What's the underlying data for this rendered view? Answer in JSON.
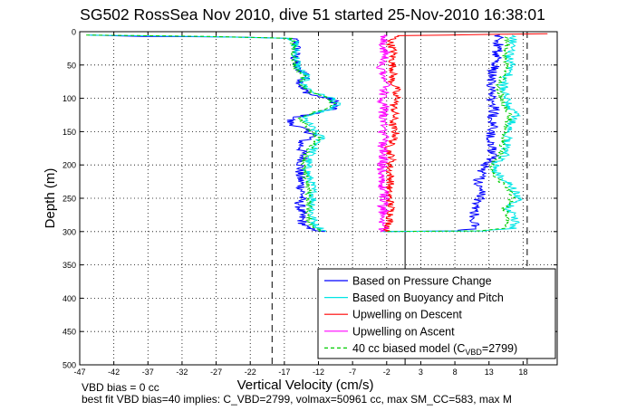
{
  "chart_data": {
    "type": "line",
    "title": "SG502 RossSea Nov 2010, dive 51 started 25-Nov-2010 16:38:01",
    "xlabel": "Vertical Velocity (cm/s)",
    "ylabel": "Depth (m)",
    "xlim": [
      -47,
      23
    ],
    "ylim": [
      0,
      500
    ],
    "y_reversed": true,
    "grid": true,
    "legend_position": "bottom-right",
    "xticks": [
      -47,
      -42,
      -37,
      -32,
      -27,
      -22,
      -17,
      -12,
      -7,
      -2,
      3,
      8,
      13,
      18
    ],
    "yticks": [
      0,
      50,
      100,
      150,
      200,
      250,
      300,
      350,
      400,
      450,
      500
    ],
    "reference_lines": {
      "zero_solid": 0.7,
      "dashed": [
        -18.8,
        18.6
      ]
    },
    "series": [
      {
        "name": "Based on Pressure Change",
        "color": "#0000ff",
        "descent": [
          [
            -45.7,
            5
          ],
          [
            -38,
            7
          ],
          [
            -25,
            8
          ],
          [
            -16,
            10
          ],
          [
            -15.5,
            12
          ],
          [
            -15.2,
            20
          ],
          [
            -15.5,
            40
          ],
          [
            -15.2,
            55
          ],
          [
            -13.5,
            65
          ],
          [
            -14.5,
            75
          ],
          [
            -14.5,
            85
          ],
          [
            -13,
            95
          ],
          [
            -10.5,
            100
          ],
          [
            -9.5,
            105
          ],
          [
            -9.8,
            115
          ],
          [
            -11.5,
            120
          ],
          [
            -15,
            128
          ],
          [
            -16.3,
            133
          ],
          [
            -16,
            138
          ],
          [
            -14.5,
            145
          ],
          [
            -12.5,
            155
          ],
          [
            -14.5,
            165
          ],
          [
            -14.5,
            175
          ],
          [
            -14.2,
            190
          ],
          [
            -14.6,
            200
          ],
          [
            -14.8,
            215
          ],
          [
            -14.5,
            230
          ],
          [
            -14.3,
            245
          ],
          [
            -14.8,
            255
          ],
          [
            -14.6,
            270
          ],
          [
            -14.4,
            285
          ],
          [
            -13.8,
            295
          ],
          [
            -11,
            300
          ]
        ],
        "ascent": [
          [
            -2,
            300
          ],
          [
            8,
            299
          ],
          [
            10.5,
            296
          ],
          [
            11,
            290
          ],
          [
            10.8,
            280
          ],
          [
            11.2,
            260
          ],
          [
            11.8,
            245
          ],
          [
            11.5,
            225
          ],
          [
            11.8,
            210
          ],
          [
            12.5,
            200
          ],
          [
            13.2,
            195
          ],
          [
            13.6,
            185
          ],
          [
            13.5,
            170
          ],
          [
            13.2,
            155
          ],
          [
            13.8,
            145
          ],
          [
            13.5,
            130
          ],
          [
            13.8,
            115
          ],
          [
            13.3,
            100
          ],
          [
            13.6,
            90
          ],
          [
            12.8,
            80
          ],
          [
            13.5,
            70
          ],
          [
            13.7,
            55
          ],
          [
            14,
            45
          ],
          [
            14.2,
            30
          ],
          [
            14.5,
            15
          ],
          [
            14.6,
            5
          ]
        ]
      },
      {
        "name": "Based on Buoyancy and Pitch",
        "color": "#00e5e5",
        "descent": [
          [
            -46.2,
            5
          ],
          [
            -30,
            7
          ],
          [
            -16,
            10
          ],
          [
            -15.5,
            15
          ],
          [
            -15.3,
            35
          ],
          [
            -15,
            55
          ],
          [
            -13.8,
            65
          ],
          [
            -14.2,
            80
          ],
          [
            -12.5,
            92
          ],
          [
            -10,
            100
          ],
          [
            -9.3,
            110
          ],
          [
            -11,
            118
          ],
          [
            -13.5,
            125
          ],
          [
            -14.2,
            130
          ],
          [
            -13.5,
            138
          ],
          [
            -12.5,
            150
          ],
          [
            -11.5,
            160
          ],
          [
            -12.5,
            172
          ],
          [
            -13.2,
            185
          ],
          [
            -13.7,
            200
          ],
          [
            -13.5,
            215
          ],
          [
            -13,
            230
          ],
          [
            -12.8,
            245
          ],
          [
            -12.8,
            260
          ],
          [
            -13,
            275
          ],
          [
            -12.5,
            290
          ],
          [
            -11,
            300
          ]
        ],
        "ascent": [
          [
            -2,
            300
          ],
          [
            12,
            299
          ],
          [
            16.5,
            295
          ],
          [
            17,
            285
          ],
          [
            16,
            265
          ],
          [
            17.5,
            250
          ],
          [
            16.5,
            235
          ],
          [
            15,
            220
          ],
          [
            13.8,
            210
          ],
          [
            14.2,
            195
          ],
          [
            15.3,
            185
          ],
          [
            15.6,
            170
          ],
          [
            15.8,
            155
          ],
          [
            16.2,
            140
          ],
          [
            16.8,
            125
          ],
          [
            15.8,
            110
          ],
          [
            15.3,
            95
          ],
          [
            15,
            80
          ],
          [
            15.8,
            65
          ],
          [
            16.3,
            50
          ],
          [
            16,
            35
          ],
          [
            16.5,
            20
          ],
          [
            16.4,
            5
          ]
        ]
      },
      {
        "name": "Upwelling on Descent",
        "color": "#ff0000",
        "descent": [
          [
            21.5,
            3
          ],
          [
            14,
            4
          ],
          [
            -0.5,
            6
          ],
          [
            -1.5,
            15
          ],
          [
            -1,
            30
          ],
          [
            -1.2,
            45
          ],
          [
            -1,
            60
          ],
          [
            -1.3,
            75
          ],
          [
            -0.5,
            85
          ],
          [
            -1,
            95
          ],
          [
            -0.2,
            100
          ],
          [
            -1,
            110
          ],
          [
            -0.8,
            125
          ],
          [
            -1.2,
            140
          ],
          [
            -0.6,
            155
          ],
          [
            -1.8,
            175
          ],
          [
            -1.2,
            190
          ],
          [
            -1.6,
            205
          ],
          [
            -1.4,
            225
          ],
          [
            -1.8,
            240
          ],
          [
            -1.5,
            255
          ],
          [
            -1.3,
            270
          ],
          [
            -1.6,
            285
          ],
          [
            -1.8,
            295
          ],
          [
            -2.2,
            300
          ]
        ]
      },
      {
        "name": "Upwelling on Ascent",
        "color": "#ff00ff",
        "ascent": [
          [
            -2.2,
            300
          ],
          [
            -2.5,
            295
          ],
          [
            -2.3,
            280
          ],
          [
            -2.6,
            265
          ],
          [
            -2.4,
            250
          ],
          [
            -2.7,
            235
          ],
          [
            -2.5,
            220
          ],
          [
            -2.8,
            205
          ],
          [
            -2.4,
            190
          ],
          [
            -2.6,
            175
          ],
          [
            -2.3,
            160
          ],
          [
            -2.5,
            145
          ],
          [
            -2.7,
            130
          ],
          [
            -2.3,
            115
          ],
          [
            -2.6,
            100
          ],
          [
            -2.4,
            90
          ],
          [
            -2.2,
            75
          ],
          [
            -2.8,
            60
          ],
          [
            -2.5,
            45
          ],
          [
            -2.2,
            30
          ],
          [
            -2.7,
            15
          ],
          [
            -2.4,
            5
          ]
        ]
      },
      {
        "name": "40 cc biased model (C_VBD=2799)",
        "color": "#00cc00",
        "dashed": true,
        "descent": [
          [
            -46,
            5
          ],
          [
            -28,
            7
          ],
          [
            -16,
            10
          ],
          [
            -15.8,
            15
          ],
          [
            -15.6,
            35
          ],
          [
            -15.4,
            55
          ],
          [
            -14.2,
            65
          ],
          [
            -14.5,
            80
          ],
          [
            -13,
            92
          ],
          [
            -10.5,
            100
          ],
          [
            -9.8,
            110
          ],
          [
            -11.5,
            118
          ],
          [
            -14,
            125
          ],
          [
            -14.8,
            130
          ],
          [
            -14,
            138
          ],
          [
            -13,
            150
          ],
          [
            -12,
            160
          ],
          [
            -13,
            172
          ],
          [
            -13.8,
            185
          ],
          [
            -14.2,
            200
          ],
          [
            -14,
            215
          ],
          [
            -13.6,
            230
          ],
          [
            -13.4,
            245
          ],
          [
            -13.4,
            260
          ],
          [
            -13.6,
            275
          ],
          [
            -13,
            290
          ],
          [
            -11.5,
            300
          ]
        ],
        "ascent": [
          [
            -2,
            300
          ],
          [
            11,
            299
          ],
          [
            15.5,
            295
          ],
          [
            16,
            285
          ],
          [
            15.2,
            265
          ],
          [
            16.5,
            250
          ],
          [
            15.7,
            235
          ],
          [
            14.3,
            220
          ],
          [
            13.2,
            210
          ],
          [
            13.6,
            195
          ],
          [
            14.7,
            185
          ],
          [
            15,
            170
          ],
          [
            15.2,
            155
          ],
          [
            15.6,
            140
          ],
          [
            16,
            125
          ],
          [
            15.2,
            110
          ],
          [
            14.7,
            95
          ],
          [
            14.4,
            80
          ],
          [
            15.2,
            65
          ],
          [
            15.6,
            50
          ],
          [
            15.4,
            35
          ],
          [
            15.8,
            20
          ],
          [
            15.7,
            5
          ]
        ]
      }
    ],
    "legend_entries": [
      {
        "label": "Based on Pressure Change",
        "color": "#0000ff",
        "dashed": false
      },
      {
        "label": "Based on Buoyancy and Pitch",
        "color": "#00e5e5",
        "dashed": false
      },
      {
        "label": "Upwelling on Descent",
        "color": "#ff0000",
        "dashed": false
      },
      {
        "label": "Upwelling on Ascent",
        "color": "#ff00ff",
        "dashed": false
      },
      {
        "label": "40 cc biased model (C",
        "sub": "VBD",
        "suffix": "=2799)",
        "color": "#00cc00",
        "dashed": true
      }
    ],
    "annotations": {
      "line1": "VBD bias = 0 cc",
      "line2": "best fit VBD bias=40 implies: C_VBD=2799, volmax=50961 cc, max SM_CC=583, max M"
    }
  }
}
